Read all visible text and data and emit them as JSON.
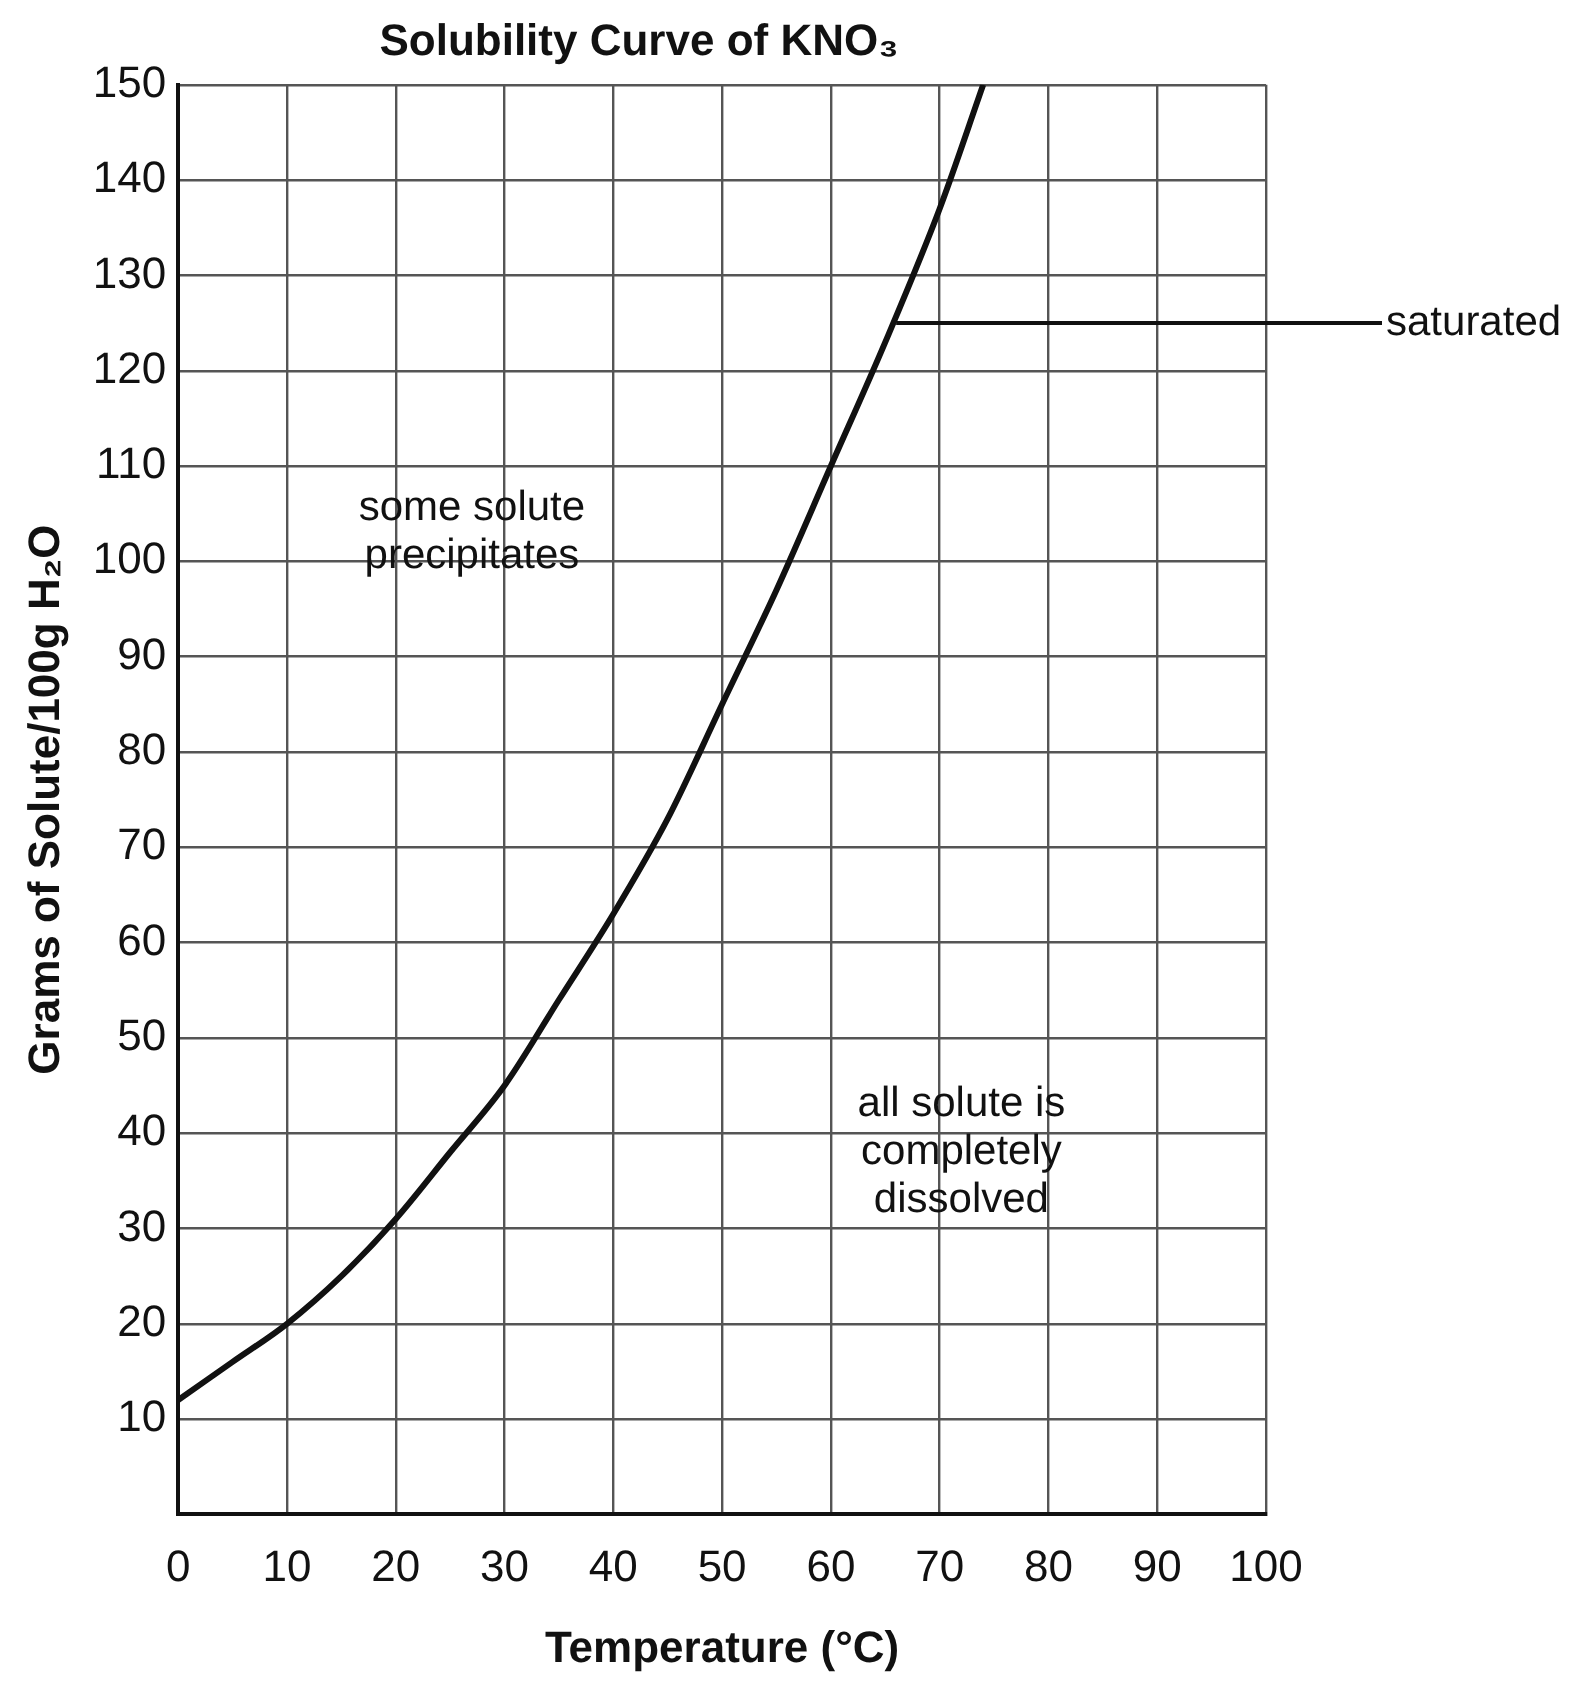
{
  "chart_data": {
    "type": "line",
    "title": "Solubility Curve of KNO₃",
    "xlabel": "Temperature (°C)",
    "ylabel": "Grams of Solute/100g H₂O",
    "x": [
      0,
      5,
      10,
      15,
      20,
      25,
      30,
      35,
      40,
      45,
      50,
      55,
      60,
      65,
      70,
      74
    ],
    "series": [
      {
        "color": "#111111",
        "values": [
          12,
          16,
          20,
          25,
          31,
          38,
          45,
          54,
          63,
          73,
          85,
          97,
          110,
          123,
          137,
          150
        ]
      }
    ],
    "xlim": [
      0,
      100
    ],
    "xticks": [
      0,
      10,
      20,
      30,
      40,
      50,
      60,
      70,
      80,
      90,
      100
    ],
    "ylim": [
      0,
      150
    ],
    "yticks": [
      10,
      20,
      30,
      40,
      50,
      60,
      70,
      80,
      90,
      100,
      110,
      120,
      130,
      140,
      150
    ],
    "grid": true,
    "legend": false,
    "annotations": [
      "some solute precipitates",
      "all solute is completely dissolved",
      {
        "text": "saturated",
        "x": 66,
        "y": 125
      }
    ]
  }
}
